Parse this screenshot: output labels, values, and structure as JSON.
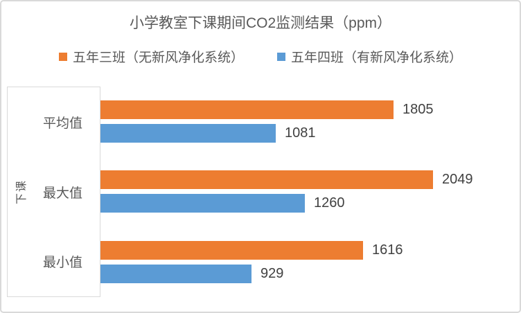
{
  "chart_data": {
    "type": "bar",
    "orientation": "horizontal",
    "title": "小学教室下课期间CO2监测结果（ppm）",
    "category_axis_title": "下课",
    "categories": [
      "平均值",
      "最大值",
      "最小值"
    ],
    "series": [
      {
        "name": "五年三班（无新风净化系统）",
        "color": "#ED7D31",
        "values": [
          1805,
          2049,
          1616
        ]
      },
      {
        "name": "五年四班（有新风净化系统）",
        "color": "#5B9BD5",
        "values": [
          1081,
          1260,
          929
        ]
      }
    ],
    "data_labels": "outside-end",
    "legend_position": "top",
    "gridlines": false,
    "value_axis_visible": false,
    "value_axis_min": 0,
    "value_axis_implied_max": 2580
  },
  "colors": {
    "series1": "#ED7D31",
    "series2": "#5B9BD5",
    "title_text": "#595959",
    "label_text": "#595959",
    "data_label_text": "#404040",
    "border": "#D9D9D9",
    "background": "#FFFFFF"
  }
}
